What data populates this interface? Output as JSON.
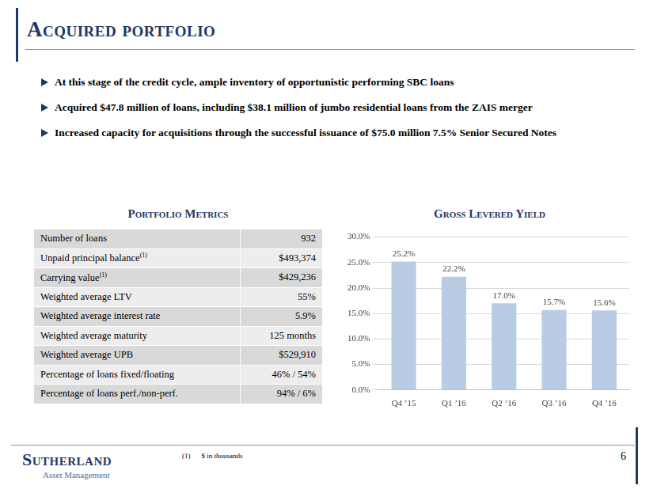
{
  "title": "Acquired portfolio",
  "bullets": [
    "At this stage of the credit cycle, ample inventory of opportunistic performing SBC loans",
    "Acquired $47.8 million of loans, including $38.1 million of jumbo residential loans from the ZAIS merger",
    "Increased capacity for acquisitions through the successful issuance of $75.0 million 7.5% Senior Secured Notes"
  ],
  "table": {
    "title": "Portfolio Metrics",
    "rows": [
      {
        "label": "Number of loans",
        "value": "932"
      },
      {
        "label": "Unpaid principal balance",
        "note": "(1)",
        "value": "$493,374"
      },
      {
        "label": "Carrying value",
        "note": "(1)",
        "value": "$429,236"
      },
      {
        "label": "Weighted average LTV",
        "value": "55%"
      },
      {
        "label": "Weighted average interest rate",
        "value": "5.9%"
      },
      {
        "label": "Weighted average maturity",
        "value": "125 months"
      },
      {
        "label": "Weighted average UPB",
        "value": "$529,910"
      },
      {
        "label": "Percentage of loans fixed/floating",
        "value": "46% / 54%"
      },
      {
        "label": "Percentage of loans perf./non-perf.",
        "value": "94% / 6%"
      }
    ]
  },
  "chart_data": {
    "type": "bar",
    "title": "Gross Levered Yield",
    "categories": [
      "Q4 ’15",
      "Q1 ’16",
      "Q2 ’16",
      "Q3 ’16",
      "Q4 ’16"
    ],
    "values": [
      25.2,
      22.2,
      17.0,
      15.7,
      15.6
    ],
    "value_labels": [
      "25.2%",
      "22.2%",
      "17.0%",
      "15.7%",
      "15.6%"
    ],
    "data_labels": true,
    "color": "#b8cce4",
    "ylim": [
      0,
      30
    ],
    "yticks": [
      {
        "value": 0,
        "label": "0.0%"
      },
      {
        "value": 5,
        "label": "5.0%"
      },
      {
        "value": 10,
        "label": "10.0%"
      },
      {
        "value": 15,
        "label": "15.0%"
      },
      {
        "value": 20,
        "label": "20.0%"
      },
      {
        "value": 25,
        "label": "25.0%"
      },
      {
        "value": 30,
        "label": "30.0%"
      }
    ],
    "grid": true
  },
  "footnote": {
    "marker": "(1)",
    "text": "$ in thousands"
  },
  "page_number": "6",
  "logo": {
    "name": "Sutherland",
    "tagline": "Asset Management"
  }
}
